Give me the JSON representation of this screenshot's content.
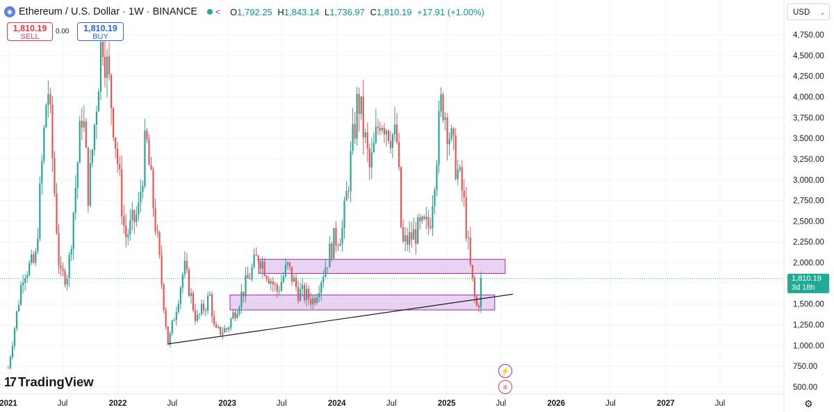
{
  "header": {
    "symbol_title": "Ethereum / U.S. Dollar · 1W · BINANCE",
    "ohlc": {
      "o_label": "O",
      "o": "1,792.25",
      "h_label": "H",
      "h": "1,843.14",
      "l_label": "L",
      "l": "1,736.97",
      "c_label": "C",
      "c": "1,810.19",
      "change": "+17.91 (+1.00%)"
    },
    "status_color": "#22ab94"
  },
  "trade": {
    "sell_price": "1,810.19",
    "sell_label": "SELL",
    "spread": "0.00",
    "buy_price": "1,810.19",
    "buy_label": "BUY"
  },
  "currency": "USD",
  "logo_text": "TradingView",
  "price_badge": {
    "price": "1,810.19",
    "countdown": "3d 18h"
  },
  "colors": {
    "up": "#26a69a",
    "down": "#ef5350",
    "zone_fill": "#e1c4ee",
    "zone_stroke": "#9c27b0",
    "badge": "#22ab94"
  },
  "icons": [
    "ethereum-icon",
    "share-icon",
    "lightning-event-icon",
    "us-flag-event-icon",
    "gear-icon"
  ],
  "chart_data": {
    "type": "candlestick",
    "y_axis": {
      "ticks": [
        500,
        750,
        1000,
        1250,
        1500,
        1750,
        2000,
        2250,
        2500,
        2750,
        3000,
        3250,
        3500,
        3750,
        4000,
        4250,
        4500,
        4750
      ],
      "tick_labels": [
        "500.00",
        "750.00",
        "1,000.00",
        "1,250.00",
        "1,500.00",
        "",
        "2,000.00",
        "2,250.00",
        "2,500.00",
        "2,750.00",
        "3,000.00",
        "3,250.00",
        "3,500.00",
        "3,750.00",
        "4,000.00",
        "4,250.00",
        "4,500.00",
        "4,750.00"
      ],
      "range": [
        440,
        4900
      ]
    },
    "x_axis": {
      "range": [
        "2021-01-01",
        "2027-12-31"
      ],
      "ticks": [
        {
          "date": "2021-01-01",
          "label": "2021",
          "bold": true
        },
        {
          "date": "2021-07-01",
          "label": "Jul",
          "bold": false
        },
        {
          "date": "2022-01-01",
          "label": "2022",
          "bold": true
        },
        {
          "date": "2022-07-01",
          "label": "Jul",
          "bold": false
        },
        {
          "date": "2023-01-01",
          "label": "2023",
          "bold": true
        },
        {
          "date": "2023-07-01",
          "label": "Jul",
          "bold": false
        },
        {
          "date": "2024-01-01",
          "label": "2024",
          "bold": true
        },
        {
          "date": "2024-07-01",
          "label": "Jul",
          "bold": false
        },
        {
          "date": "2025-01-01",
          "label": "2025",
          "bold": true
        },
        {
          "date": "2025-07-01",
          "label": "Jul",
          "bold": false
        },
        {
          "date": "2026-01-01",
          "label": "2026",
          "bold": true
        },
        {
          "date": "2026-07-01",
          "label": "Jul",
          "bold": false
        },
        {
          "date": "2027-01-01",
          "label": "2027",
          "bold": true
        },
        {
          "date": "2027-07-01",
          "label": "Jul",
          "bold": false
        }
      ]
    },
    "price_path": [
      [
        "2021-01-01",
        730
      ],
      [
        "2021-02-20",
        1900
      ],
      [
        "2021-04-01",
        2000
      ],
      [
        "2021-05-12",
        4200
      ],
      [
        "2021-06-22",
        1800
      ],
      [
        "2021-07-20",
        1900
      ],
      [
        "2021-09-05",
        3900
      ],
      [
        "2021-09-25",
        2800
      ],
      [
        "2021-11-10",
        4800
      ],
      [
        "2021-12-15",
        3800
      ],
      [
        "2022-01-25",
        2300
      ],
      [
        "2022-03-10",
        2600
      ],
      [
        "2022-04-05",
        3500
      ],
      [
        "2022-05-20",
        2000
      ],
      [
        "2022-06-18",
        1000
      ],
      [
        "2022-08-10",
        1950
      ],
      [
        "2022-09-20",
        1300
      ],
      [
        "2022-11-05",
        1600
      ],
      [
        "2022-11-20",
        1150
      ],
      [
        "2022-12-31",
        1200
      ],
      [
        "2023-04-15",
        2100
      ],
      [
        "2023-06-15",
        1650
      ],
      [
        "2023-07-20",
        1950
      ],
      [
        "2023-08-25",
        1650
      ],
      [
        "2023-10-15",
        1550
      ],
      [
        "2023-12-20",
        2250
      ],
      [
        "2024-01-20",
        2400
      ],
      [
        "2024-03-12",
        4000
      ],
      [
        "2024-04-20",
        3100
      ],
      [
        "2024-05-25",
        3800
      ],
      [
        "2024-07-20",
        3450
      ],
      [
        "2024-08-05",
        2200
      ],
      [
        "2024-10-01",
        2400
      ],
      [
        "2024-11-05",
        2450
      ],
      [
        "2024-12-16",
        4000
      ],
      [
        "2025-01-25",
        3300
      ],
      [
        "2025-02-25",
        2800
      ],
      [
        "2025-03-20",
        1950
      ],
      [
        "2025-04-09",
        1450
      ],
      [
        "2025-04-25",
        1600
      ],
      [
        "2025-05-01",
        1810
      ]
    ],
    "last_price": 1810.19,
    "zones": [
      {
        "x1": "2023-04-15",
        "x2": "2025-07-15",
        "y_low": 1870,
        "y_high": 2040
      },
      {
        "x1": "2023-01-10",
        "x2": "2025-06-10",
        "y_low": 1430,
        "y_high": 1610
      }
    ],
    "trendline": {
      "x1": "2022-06-18",
      "y1": 1020,
      "x2": "2025-08-10",
      "y2": 1620
    }
  }
}
